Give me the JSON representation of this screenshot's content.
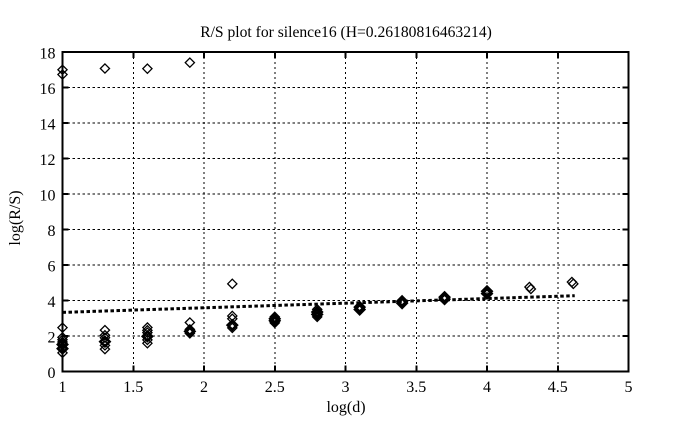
{
  "figure": {
    "background_color": "#ffffff",
    "ink_color": "#000000"
  },
  "chart_data": {
    "type": "scatter",
    "title": "R/S plot for silence16 (H=0.26180816463214)",
    "xlabel": "log(d)",
    "ylabel": "log(R/S)",
    "xlim": [
      1,
      5
    ],
    "ylim": [
      0,
      18
    ],
    "xticks": [
      1,
      1.5,
      2,
      2.5,
      3,
      3.5,
      4,
      4.5,
      5
    ],
    "xtick_labels": [
      "1",
      "1.5",
      "2",
      "2.5",
      "3",
      "3.5",
      "4",
      "4.5",
      "5"
    ],
    "yticks": [
      0,
      2,
      4,
      6,
      8,
      10,
      12,
      14,
      16,
      18
    ],
    "ytick_labels": [
      "0",
      "2",
      "4",
      "6",
      "8",
      "10",
      "12",
      "14",
      "16",
      "18"
    ],
    "grid": "dotted",
    "legend": "none",
    "marker": "open-diamond",
    "hurst_exponent": 0.26180816463214,
    "series": [
      {
        "name": "rs-points",
        "points": [
          {
            "x": 1.0,
            "y": 17.0
          },
          {
            "x": 1.0,
            "y": 16.73
          },
          {
            "x": 1.3,
            "y": 17.07
          },
          {
            "x": 1.6,
            "y": 17.06
          },
          {
            "x": 1.9,
            "y": 17.4
          },
          {
            "x": 1.0,
            "y": 2.47
          },
          {
            "x": 1.0,
            "y": 1.92
          },
          {
            "x": 1.0,
            "y": 1.79
          },
          {
            "x": 1.0,
            "y": 1.66
          },
          {
            "x": 1.0,
            "y": 1.52,
            "b": 1
          },
          {
            "x": 1.0,
            "y": 1.29,
            "b": 1
          },
          {
            "x": 1.0,
            "y": 1.05
          },
          {
            "x": 1.3,
            "y": 2.33
          },
          {
            "x": 1.3,
            "y": 2.04
          },
          {
            "x": 1.3,
            "y": 1.9
          },
          {
            "x": 1.3,
            "y": 1.68,
            "b": 1
          },
          {
            "x": 1.3,
            "y": 1.47
          },
          {
            "x": 1.3,
            "y": 1.26
          },
          {
            "x": 1.6,
            "y": 2.48
          },
          {
            "x": 1.6,
            "y": 2.32
          },
          {
            "x": 1.6,
            "y": 2.19
          },
          {
            "x": 1.6,
            "y": 1.98,
            "b": 1
          },
          {
            "x": 1.6,
            "y": 1.78
          },
          {
            "x": 1.6,
            "y": 1.59
          },
          {
            "x": 1.9,
            "y": 2.76
          },
          {
            "x": 1.9,
            "y": 2.37
          },
          {
            "x": 1.9,
            "y": 2.26,
            "b": 1
          },
          {
            "x": 1.9,
            "y": 2.15
          },
          {
            "x": 2.2,
            "y": 4.94
          },
          {
            "x": 2.2,
            "y": 3.13
          },
          {
            "x": 2.2,
            "y": 2.97
          },
          {
            "x": 2.2,
            "y": 2.61,
            "b": 1
          },
          {
            "x": 2.2,
            "y": 2.46
          },
          {
            "x": 2.5,
            "y": 3.08
          },
          {
            "x": 2.5,
            "y": 2.97,
            "b": 1
          },
          {
            "x": 2.5,
            "y": 2.86,
            "b": 1
          },
          {
            "x": 2.5,
            "y": 2.74
          },
          {
            "x": 2.8,
            "y": 3.5
          },
          {
            "x": 2.8,
            "y": 3.35,
            "b": 1
          },
          {
            "x": 2.8,
            "y": 3.22,
            "b": 1
          },
          {
            "x": 2.8,
            "y": 3.08
          },
          {
            "x": 3.1,
            "y": 3.63,
            "b": 1
          },
          {
            "x": 3.1,
            "y": 3.49,
            "b": 1
          },
          {
            "x": 3.4,
            "y": 3.96,
            "b": 1
          },
          {
            "x": 3.4,
            "y": 3.85,
            "b": 1
          },
          {
            "x": 3.7,
            "y": 4.19,
            "b": 1
          },
          {
            "x": 3.7,
            "y": 4.08,
            "b": 1
          },
          {
            "x": 4.0,
            "y": 4.52,
            "b": 1
          },
          {
            "x": 4.0,
            "y": 4.39,
            "b": 1
          },
          {
            "x": 4.3,
            "y": 4.76
          },
          {
            "x": 4.31,
            "y": 4.65
          },
          {
            "x": 4.6,
            "y": 5.04
          },
          {
            "x": 4.61,
            "y": 4.94
          }
        ]
      }
    ],
    "fit_line": {
      "name": "hurst-fit-line",
      "style": "thick-dotted",
      "x1": 1.0,
      "y1": 3.33,
      "x2": 4.62,
      "y2": 4.27
    }
  }
}
